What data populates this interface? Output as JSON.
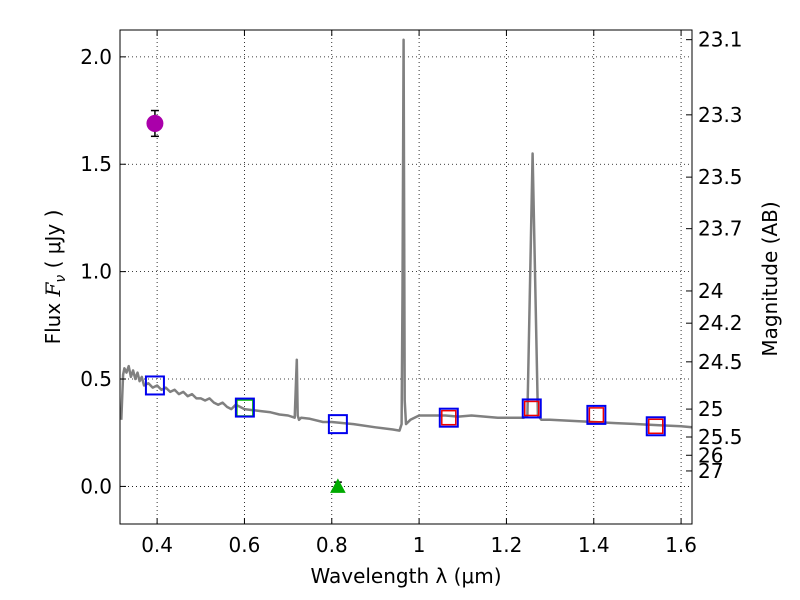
{
  "chart_data": {
    "type": "line",
    "title": "",
    "xlabel": "Wavelength  λ (μm)",
    "ylabel": "Flux  F_ν  ( μJy )",
    "ylabel_parts": {
      "prefix": "Flux  ",
      "symbol": "F",
      "subscript": "ν",
      "suffix": "  ( μJy )"
    },
    "y2label": "Magnitude (AB)",
    "xlim": [
      0.315,
      1.625
    ],
    "ylim": [
      -0.175,
      2.125
    ],
    "xticks": [
      0.4,
      0.6,
      0.8,
      1.0,
      1.2,
      1.4,
      1.6
    ],
    "xtick_labels": [
      "0.4",
      "0.6",
      "0.8",
      "1",
      "1.2",
      "1.4",
      "1.6"
    ],
    "yticks": [
      0.0,
      0.5,
      1.0,
      1.5,
      2.0
    ],
    "ytick_labels": [
      "0.0",
      "0.5",
      "1.0",
      "1.5",
      "2.0"
    ],
    "y2ticks": [
      {
        "label": "23.1",
        "flux": 2.08
      },
      {
        "label": "23.3",
        "flux": 1.73
      },
      {
        "label": "23.5",
        "flux": 1.44
      },
      {
        "label": "23.7",
        "flux": 1.2
      },
      {
        "label": "24",
        "flux": 0.91
      },
      {
        "label": "24.2",
        "flux": 0.76
      },
      {
        "label": "24.5",
        "flux": 0.58
      },
      {
        "label": "25",
        "flux": 0.36
      },
      {
        "label": "25.5",
        "flux": 0.23
      },
      {
        "label": "26",
        "flux": 0.145
      },
      {
        "label": "27",
        "flux": 0.072
      }
    ],
    "grid": true,
    "colors": {
      "model": "#808080",
      "obs_box": "#0000ee",
      "model_box": "#ee0000",
      "upper_point": "#aa00aa",
      "triangle": "#00aa00",
      "green_box": "#00bb00",
      "black": "#000000"
    },
    "series": [
      {
        "name": "model SED",
        "x": [
          0.318,
          0.322,
          0.325,
          0.33,
          0.335,
          0.34,
          0.345,
          0.35,
          0.355,
          0.36,
          0.365,
          0.37,
          0.38,
          0.39,
          0.4,
          0.41,
          0.42,
          0.43,
          0.44,
          0.45,
          0.46,
          0.47,
          0.48,
          0.49,
          0.5,
          0.51,
          0.52,
          0.53,
          0.54,
          0.55,
          0.56,
          0.57,
          0.58,
          0.59,
          0.6,
          0.62,
          0.64,
          0.66,
          0.68,
          0.7,
          0.715,
          0.72,
          0.722,
          0.725,
          0.73,
          0.75,
          0.78,
          0.8,
          0.85,
          0.9,
          0.94,
          0.955,
          0.96,
          0.962,
          0.9645,
          0.967,
          0.97,
          0.98,
          1.0,
          1.03,
          1.06,
          1.09,
          1.12,
          1.15,
          1.18,
          1.21,
          1.24,
          1.248,
          1.26,
          1.272,
          1.28,
          1.3,
          1.35,
          1.4,
          1.45,
          1.5,
          1.55,
          1.6,
          1.625
        ],
        "y": [
          0.31,
          0.52,
          0.55,
          0.53,
          0.56,
          0.51,
          0.54,
          0.5,
          0.53,
          0.49,
          0.51,
          0.47,
          0.48,
          0.46,
          0.47,
          0.45,
          0.46,
          0.44,
          0.45,
          0.43,
          0.44,
          0.42,
          0.43,
          0.41,
          0.41,
          0.4,
          0.41,
          0.39,
          0.38,
          0.39,
          0.37,
          0.36,
          0.38,
          0.37,
          0.36,
          0.355,
          0.35,
          0.345,
          0.335,
          0.33,
          0.32,
          0.59,
          0.33,
          0.31,
          0.32,
          0.315,
          0.3,
          0.3,
          0.29,
          0.275,
          0.265,
          0.26,
          0.29,
          0.9,
          2.08,
          0.4,
          0.29,
          0.31,
          0.33,
          0.33,
          0.33,
          0.325,
          0.33,
          0.325,
          0.32,
          0.32,
          0.32,
          0.33,
          1.55,
          0.33,
          0.31,
          0.31,
          0.305,
          0.3,
          0.295,
          0.29,
          0.285,
          0.28,
          0.275
        ]
      }
    ],
    "observed_boxes": [
      {
        "x": 0.395,
        "y": 0.47
      },
      {
        "x": 0.601,
        "y": 0.367
      },
      {
        "x": 0.814,
        "y": 0.29
      },
      {
        "x": 1.068,
        "y": 0.32
      },
      {
        "x": 1.258,
        "y": 0.363
      },
      {
        "x": 1.406,
        "y": 0.333
      },
      {
        "x": 1.542,
        "y": 0.28
      }
    ],
    "model_boxes": [
      {
        "x": 1.068,
        "y": 0.32
      },
      {
        "x": 1.258,
        "y": 0.363
      },
      {
        "x": 1.406,
        "y": 0.333
      },
      {
        "x": 1.542,
        "y": 0.28
      }
    ],
    "green_box": {
      "x": 0.601,
      "y": 0.365
    },
    "magenta_point": {
      "x": 0.395,
      "y": 1.69,
      "err_low": 0.06,
      "err_high": 0.06
    },
    "green_triangle": {
      "x": 0.814,
      "y": 0.0,
      "err": 0.02
    }
  }
}
